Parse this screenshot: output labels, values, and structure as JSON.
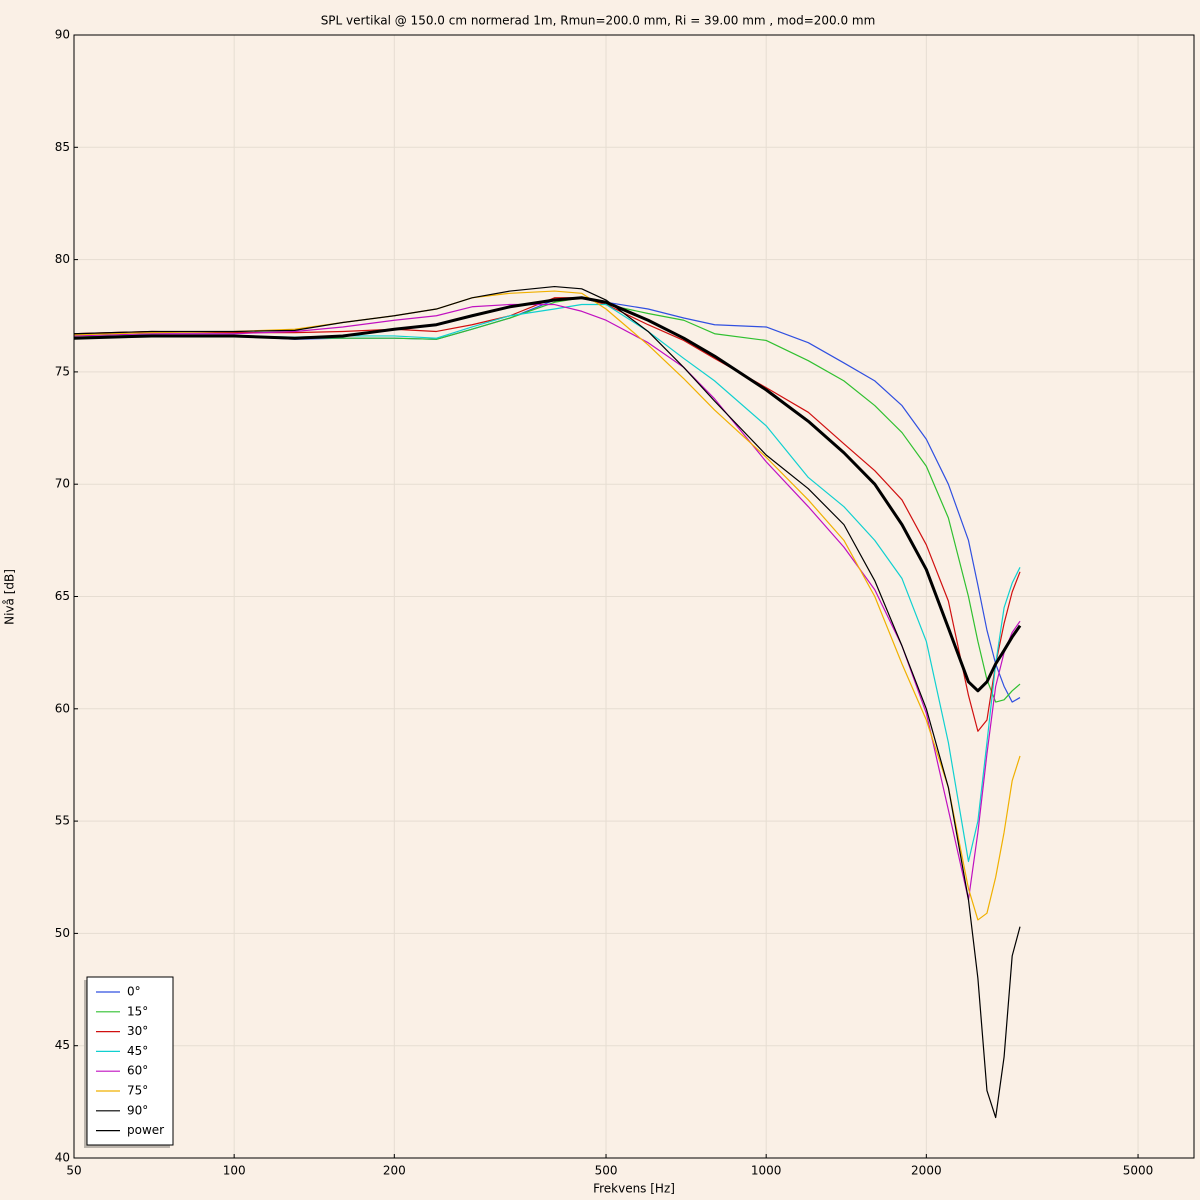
{
  "chart_data": {
    "type": "line",
    "title": "SPL vertikal @ 150.0 cm normerad 1m, Rmun=200.0 mm, Ri = 39.00 mm , mod=200.0 mm",
    "x_label": "Frekvens [Hz]",
    "y_label": "Nivå [dB]",
    "x_scale": "log",
    "grid": true,
    "legend_position": "lower left",
    "xlim": [
      50,
      6370
    ],
    "ylim": [
      40,
      90
    ],
    "xticks": [
      50,
      100,
      200,
      500,
      1000,
      2000,
      5000
    ],
    "yticks": [
      40,
      45,
      50,
      55,
      60,
      65,
      70,
      75,
      80,
      85,
      90
    ],
    "x": [
      50,
      70,
      100,
      130,
      160,
      200,
      240,
      280,
      330,
      400,
      450,
      500,
      600,
      700,
      800,
      1000,
      1200,
      1400,
      1600,
      1800,
      2000,
      2200,
      2400,
      2500,
      2600,
      2700,
      2800,
      2900,
      3000
    ],
    "series": [
      {
        "name": "0°",
        "color": "#3050e0",
        "values": [
          76.5,
          76.6,
          76.6,
          76.45,
          76.5,
          76.5,
          76.45,
          76.9,
          77.4,
          78.2,
          78.3,
          78.1,
          77.8,
          77.4,
          77.1,
          77.0,
          76.3,
          75.4,
          74.6,
          73.5,
          72.0,
          70.0,
          67.5,
          65.5,
          63.5,
          62.0,
          61.0,
          60.3,
          60.5
        ]
      },
      {
        "name": "15°",
        "color": "#30c030",
        "values": [
          76.55,
          76.65,
          76.6,
          76.5,
          76.5,
          76.5,
          76.45,
          76.9,
          77.4,
          78.1,
          78.3,
          78.0,
          77.6,
          77.3,
          76.7,
          76.4,
          75.5,
          74.6,
          73.5,
          72.3,
          70.8,
          68.5,
          65.0,
          63.0,
          61.3,
          60.3,
          60.4,
          60.8,
          61.1
        ]
      },
      {
        "name": "30°",
        "color": "#d01010",
        "values": [
          76.7,
          76.8,
          76.75,
          76.75,
          76.8,
          76.9,
          76.8,
          77.1,
          77.5,
          78.3,
          78.3,
          78.0,
          77.1,
          76.4,
          75.6,
          74.3,
          73.2,
          71.8,
          70.6,
          69.3,
          67.3,
          64.8,
          60.6,
          59.0,
          59.5,
          62.0,
          63.8,
          65.2,
          66.1
        ]
      },
      {
        "name": "45°",
        "color": "#10d0d0",
        "values": [
          76.5,
          76.65,
          76.6,
          76.55,
          76.6,
          76.6,
          76.5,
          77.0,
          77.5,
          77.8,
          78.0,
          78.0,
          76.8,
          75.6,
          74.6,
          72.6,
          70.3,
          69.0,
          67.5,
          65.8,
          63.0,
          58.5,
          53.2,
          55.0,
          58.5,
          62.0,
          64.5,
          65.6,
          66.3
        ]
      },
      {
        "name": "60°",
        "color": "#c010c0",
        "values": [
          76.6,
          76.7,
          76.7,
          76.8,
          77.0,
          77.3,
          77.5,
          77.9,
          78.0,
          78.0,
          77.7,
          77.3,
          76.3,
          75.2,
          73.8,
          71.0,
          69.0,
          67.2,
          65.3,
          62.8,
          59.8,
          55.5,
          51.5,
          54.5,
          58.0,
          61.0,
          62.5,
          63.4,
          63.9
        ]
      },
      {
        "name": "75°",
        "color": "#f0b000",
        "values": [
          76.65,
          76.75,
          76.8,
          76.9,
          77.2,
          77.5,
          77.8,
          78.3,
          78.5,
          78.6,
          78.5,
          77.8,
          76.2,
          74.7,
          73.3,
          71.2,
          69.3,
          67.5,
          65.0,
          62.0,
          59.5,
          56.5,
          52.0,
          50.6,
          50.9,
          52.5,
          54.5,
          56.8,
          57.9
        ]
      },
      {
        "name": "90°",
        "color": "#000000",
        "values": [
          76.7,
          76.8,
          76.8,
          76.85,
          77.2,
          77.5,
          77.8,
          78.3,
          78.6,
          78.8,
          78.7,
          78.2,
          76.8,
          75.2,
          73.7,
          71.3,
          69.8,
          68.2,
          65.7,
          62.8,
          60.0,
          56.5,
          51.5,
          48.0,
          43.0,
          41.8,
          44.5,
          49.0,
          50.3
        ]
      },
      {
        "name": "power",
        "color": "#000000",
        "line_width": 3,
        "values": [
          76.5,
          76.6,
          76.6,
          76.5,
          76.6,
          76.9,
          77.1,
          77.5,
          77.9,
          78.2,
          78.3,
          78.1,
          77.3,
          76.5,
          75.7,
          74.2,
          72.8,
          71.4,
          70.0,
          68.2,
          66.2,
          63.6,
          61.2,
          60.8,
          61.2,
          62.0,
          62.6,
          63.2,
          63.7
        ]
      }
    ]
  }
}
